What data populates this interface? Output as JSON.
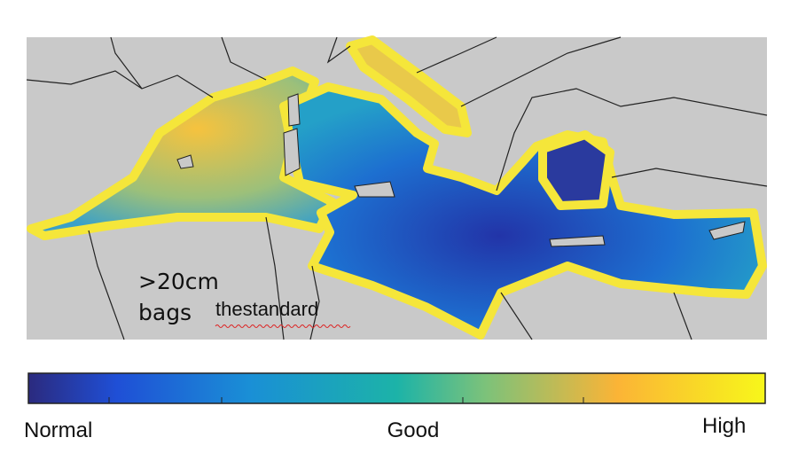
{
  "map": {
    "annotation": {
      "line1": ">20cm",
      "line2_word1": "bags",
      "line2_word2": "thestandard"
    }
  },
  "colorbar": {
    "labels": [
      "Normal",
      "Good",
      "High"
    ]
  }
}
